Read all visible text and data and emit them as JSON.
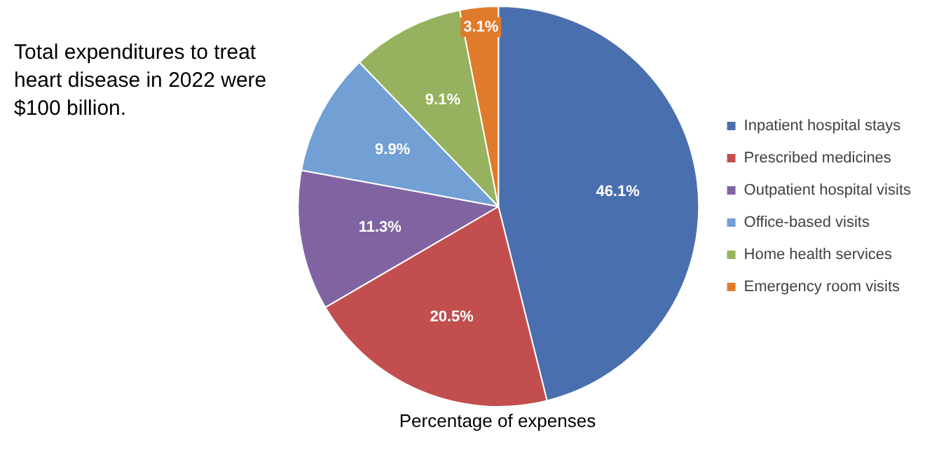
{
  "chart_data": {
    "type": "pie",
    "xlabel": "Percentage of expenses",
    "annotations": [
      "Total expenditures to treat heart disease in 2022 were $100 billion."
    ],
    "categories": [
      "Inpatient hospital stays",
      "Prescribed medicines",
      "Outpatient hospital visits",
      "Office-based visits",
      "Home health services",
      "Emergency room visits"
    ],
    "values": [
      46.1,
      20.5,
      11.3,
      9.9,
      9.1,
      3.1
    ],
    "value_labels": [
      "46.1%",
      "20.5%",
      "11.3%",
      "9.9%",
      "9.1%",
      "3.1%"
    ],
    "colors": [
      "#4a6fae",
      "#c24e4e",
      "#8064a2",
      "#72a0d4",
      "#96b25e",
      "#e07b2c"
    ],
    "legend": "right"
  }
}
